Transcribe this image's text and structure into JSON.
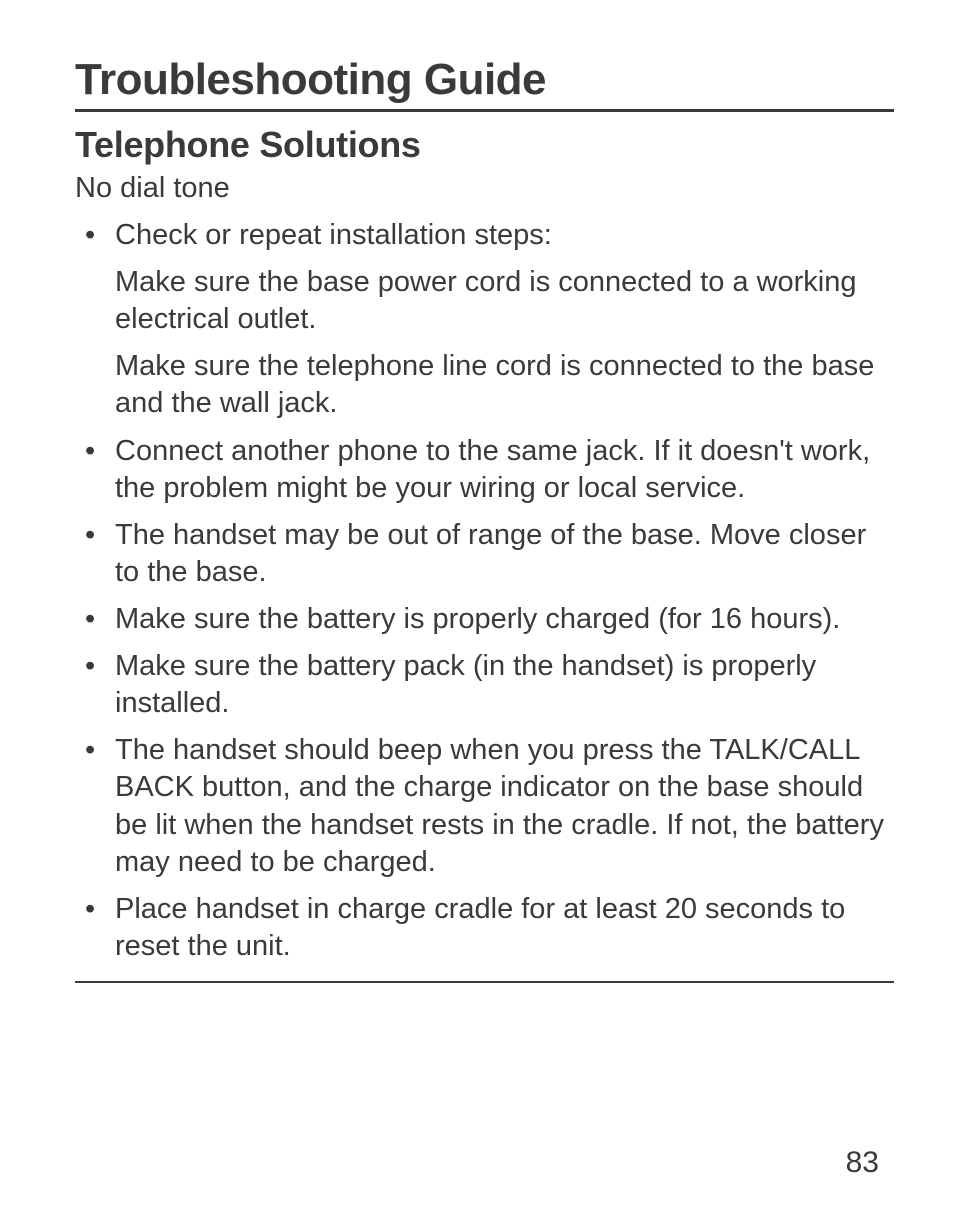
{
  "page": {
    "title": "Troubleshooting Guide",
    "section_title": "Telephone Solutions",
    "subsection_title": "No dial tone",
    "page_number": "83",
    "background_color": "#ffffff",
    "text_color": "#3a3a3a",
    "title_fontsize": 44,
    "section_fontsize": 36,
    "body_fontsize": 29,
    "rule_color": "#3a3a3a"
  },
  "items": [
    {
      "type": "bullet",
      "text": "Check or repeat installation steps:"
    },
    {
      "type": "sub",
      "text": "Make sure the base power cord is connected to a working electrical outlet."
    },
    {
      "type": "sub",
      "text": "Make sure the telephone line cord is connected to the base and the wall jack."
    },
    {
      "type": "bullet",
      "text": "Connect another phone to the same jack. If it doesn't work, the problem might be your wiring or local service."
    },
    {
      "type": "bullet",
      "text": "The handset may be out of range of the base. Move closer to the base."
    },
    {
      "type": "bullet",
      "text": "Make sure the battery is properly charged (for 16 hours)."
    },
    {
      "type": "bullet",
      "text": "Make sure the battery pack (in the handset) is properly installed."
    },
    {
      "type": "bullet",
      "text": "The handset should beep when you press the TALK/CALL BACK button, and the charge indicator on the base should be lit when the handset rests in the cradle. If not, the battery may need to be charged."
    },
    {
      "type": "bullet",
      "text": "Place handset in charge cradle for at least 20 seconds to reset the unit."
    }
  ]
}
